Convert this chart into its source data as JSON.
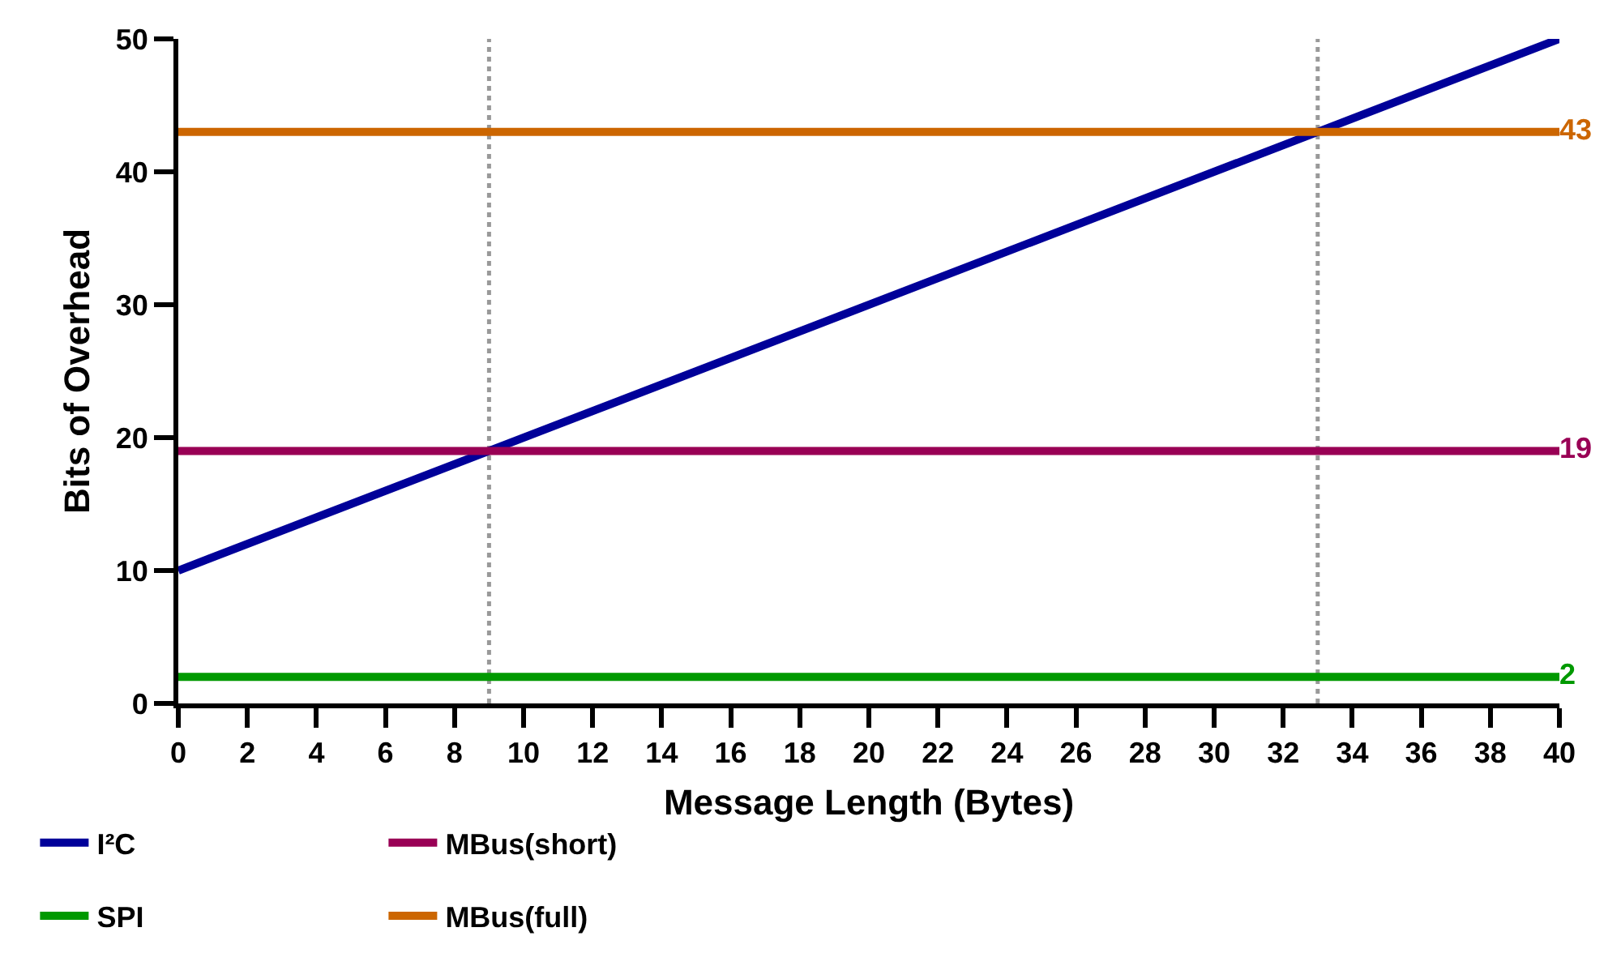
{
  "chart_data": {
    "type": "line",
    "xlabel": "Message Length (Bytes)",
    "ylabel": "Bits of Overhead",
    "xlim": [
      0,
      40
    ],
    "xticks": [
      0,
      2,
      4,
      6,
      8,
      10,
      12,
      14,
      16,
      18,
      20,
      22,
      24,
      26,
      28,
      30,
      32,
      34,
      36,
      38,
      40
    ],
    "x": [
      0,
      40
    ],
    "ylim": [
      0,
      50
    ],
    "yticks": [
      0,
      10,
      20,
      30,
      40,
      50
    ],
    "grid": false,
    "legend": "bottom left",
    "line_style": "solid",
    "series": [
      {
        "name": "I²C",
        "color": "#000099",
        "values": [
          10,
          50
        ]
      },
      {
        "name": "MBus(short)",
        "color": "#990055",
        "values": [
          19,
          19
        ],
        "value_labels": [
          null,
          "19"
        ]
      },
      {
        "name": "SPI",
        "color": "#009900",
        "values": [
          2,
          2
        ],
        "value_labels": [
          null,
          "2"
        ]
      },
      {
        "name": "MBus(full)",
        "color": "#cc6600",
        "values": [
          43,
          43
        ],
        "value_labels": [
          null,
          "43"
        ]
      }
    ],
    "ref_lines": [
      {
        "axis": "x",
        "value": 9,
        "color": "#999999",
        "line_style": "dotted"
      },
      {
        "axis": "x",
        "value": 33,
        "color": "#999999",
        "line_style": "dotted"
      }
    ]
  }
}
